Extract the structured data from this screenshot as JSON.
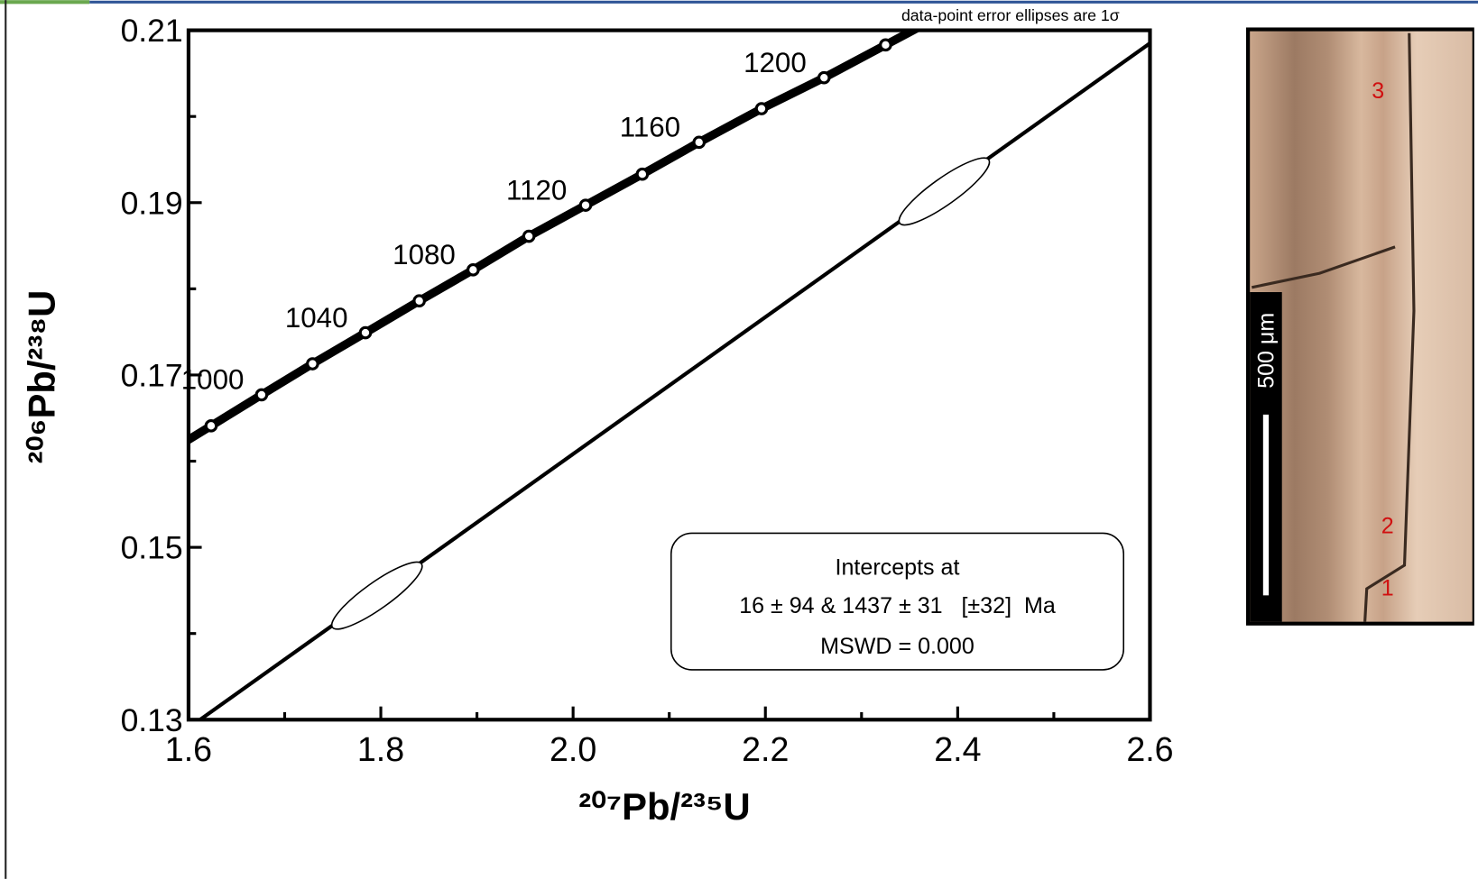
{
  "chart_data": {
    "type": "concordia",
    "annotation": "data-point error ellipses are 1σ",
    "x_label": "²⁰⁷Pb/²³⁵U",
    "y_label": "²⁰⁶Pb/²³⁸U",
    "xlim": [
      1.6,
      2.6
    ],
    "ylim": [
      0.13,
      0.21
    ],
    "xticks": [
      1.6,
      1.8,
      {
        "value": 2,
        "label": "2.0"
      },
      2.2,
      2.4,
      2.6
    ],
    "yticks": [
      0.13,
      0.15,
      0.17,
      0.19,
      0.21
    ],
    "xminorticks": [
      1.7,
      1.9,
      2.1,
      2.3,
      2.5
    ],
    "yminorticks": [
      0.14,
      0.16,
      0.18,
      0.2
    ],
    "concordia": {
      "x": [
        1.6235,
        1.676,
        1.729,
        1.784,
        1.84,
        1.896,
        1.954,
        2.013,
        2.072,
        2.131,
        2.196,
        2.261,
        2.325
      ],
      "y": [
        0.1641,
        0.1677,
        0.1713,
        0.1749,
        0.1786,
        0.1822,
        0.1861,
        0.1897,
        0.1933,
        0.197,
        0.2009,
        0.2045,
        0.2083
      ],
      "labels": [
        null,
        "1000",
        null,
        "1040",
        null,
        "1080",
        null,
        "1120",
        null,
        "1160",
        null,
        "1200",
        null
      ]
    },
    "discordia": {
      "x": [
        1.612,
        2.6
      ],
      "y": [
        0.13,
        0.2085
      ]
    },
    "ellipses": {
      "x": [
        1.796,
        2.386
      ],
      "y": [
        0.1444,
        0.1913
      ]
    },
    "result_box": [
      "Intercepts at",
      "16 ± 94 & 1437 ± 31   [±32]  Ma",
      "MSWD = 0.000"
    ]
  },
  "photo_panel": {
    "scale_bar": "500 μm",
    "zone_labels": [
      "3",
      "2",
      "1"
    ]
  }
}
